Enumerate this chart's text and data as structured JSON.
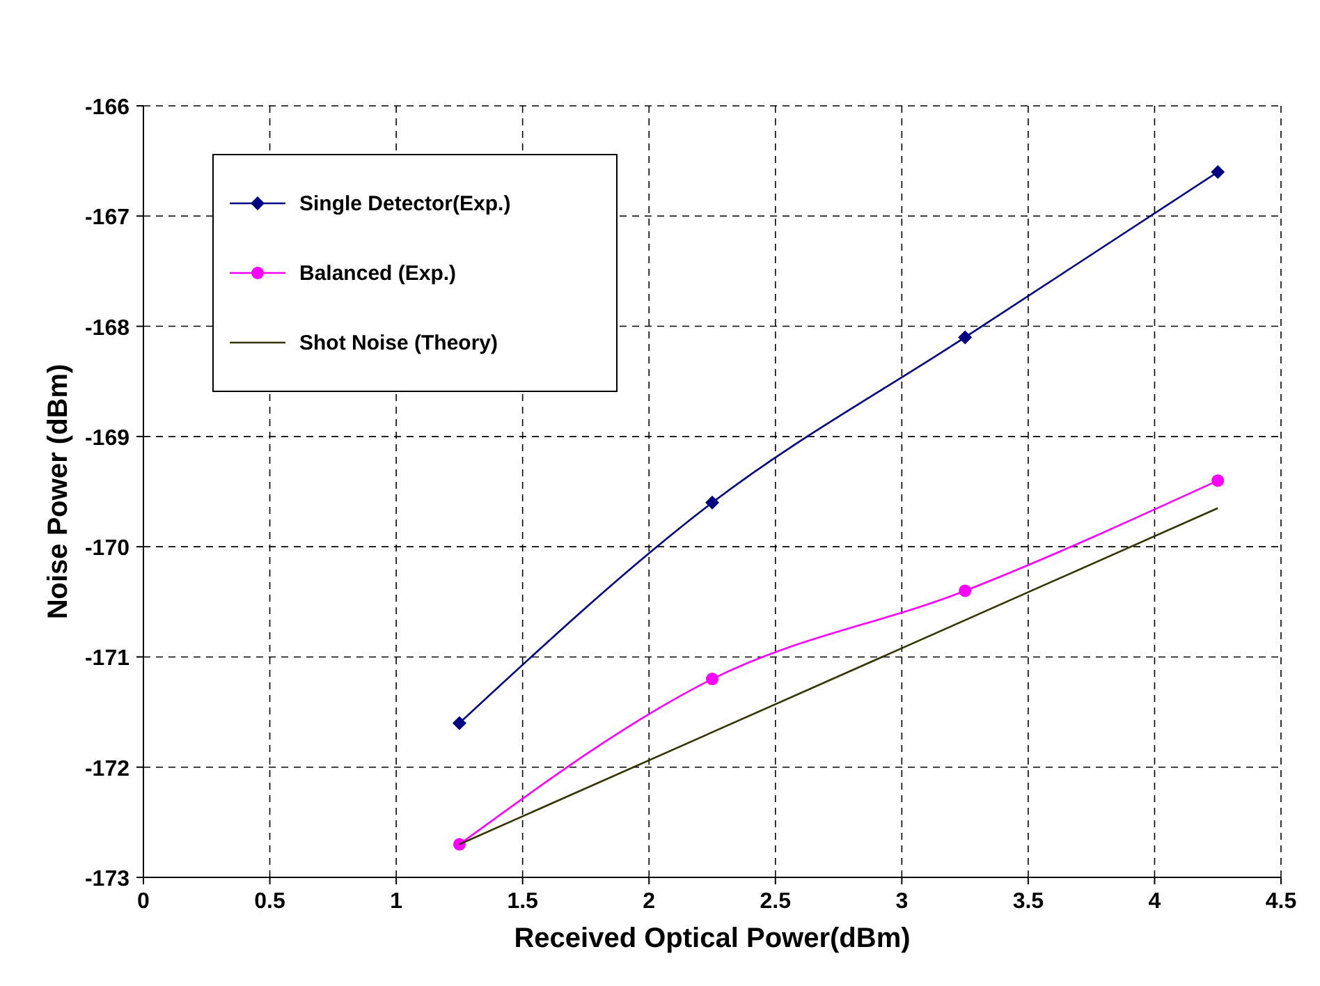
{
  "chart_data": {
    "type": "line",
    "xlabel": "Received Optical Power(dBm)",
    "ylabel": "Noise Power (dBm)",
    "x": [
      1.25,
      2.25,
      3.25,
      4.25
    ],
    "series": [
      {
        "name": "Single Detector(Exp.)",
        "color": "#000080",
        "marker": "diamond",
        "values": [
          -171.6,
          -169.6,
          -168.1,
          -166.6
        ]
      },
      {
        "name": "Balanced (Exp.)",
        "color": "#ff00ff",
        "marker": "circle",
        "values": [
          -172.7,
          -171.2,
          -170.4,
          -169.4
        ]
      },
      {
        "name": "Shot Noise (Theory)",
        "color": "#333300",
        "marker": "none",
        "x": [
          1.25,
          4.25
        ],
        "values": [
          -172.7,
          -169.65
        ]
      }
    ],
    "xlim": [
      0,
      4.5
    ],
    "xticks": [
      0,
      0.5,
      1,
      1.5,
      2,
      2.5,
      3,
      3.5,
      4,
      4.5
    ],
    "ylim": [
      -173,
      -166
    ],
    "yticks": [
      -173,
      -172,
      -171,
      -170,
      -169,
      -168,
      -167,
      -166
    ],
    "grid": true,
    "legend": "top left",
    "line_style": "solid"
  }
}
